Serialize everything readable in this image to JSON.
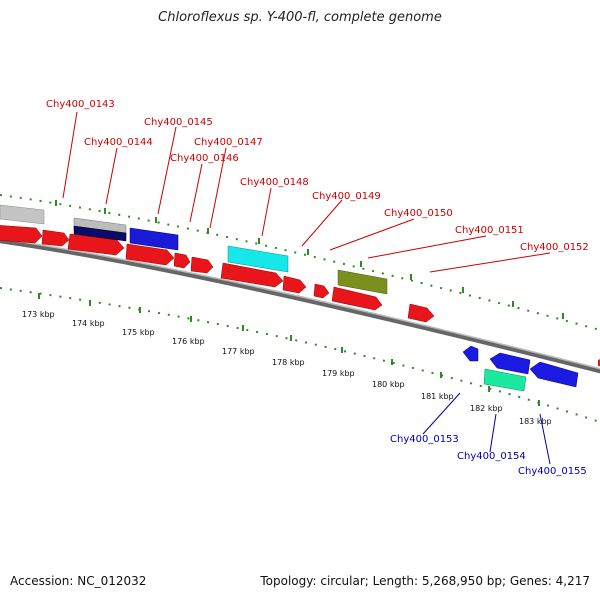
{
  "title": "Chloroflexus sp. Y-400-fl, complete genome",
  "footer": {
    "accession": "Accession: NC_012032",
    "summary": "Topology: circular; Length: 5,268,950 bp; Genes: 4,217"
  },
  "colors": {
    "label_forward": "#cc0000",
    "label_reverse": "#0000aa",
    "tick_green": "#2e8b22",
    "backbone": "#888888"
  },
  "forward_labels": [
    "Chy400_0143",
    "Chy400_0144",
    "Chy400_0145",
    "Chy400_0146",
    "Chy400_0147",
    "Chy400_0148",
    "Chy400_0149",
    "Chy400_0150",
    "Chy400_0151",
    "Chy400_0152"
  ],
  "reverse_labels": [
    "Chy400_0153",
    "Chy400_0154",
    "Chy400_0155"
  ],
  "kbp_labels": [
    "173 kbp",
    "174 kbp",
    "175 kbp",
    "176 kbp",
    "177 kbp",
    "178 kbp",
    "179 kbp",
    "180 kbp",
    "181 kbp",
    "182 kbp",
    "183 kbp"
  ]
}
